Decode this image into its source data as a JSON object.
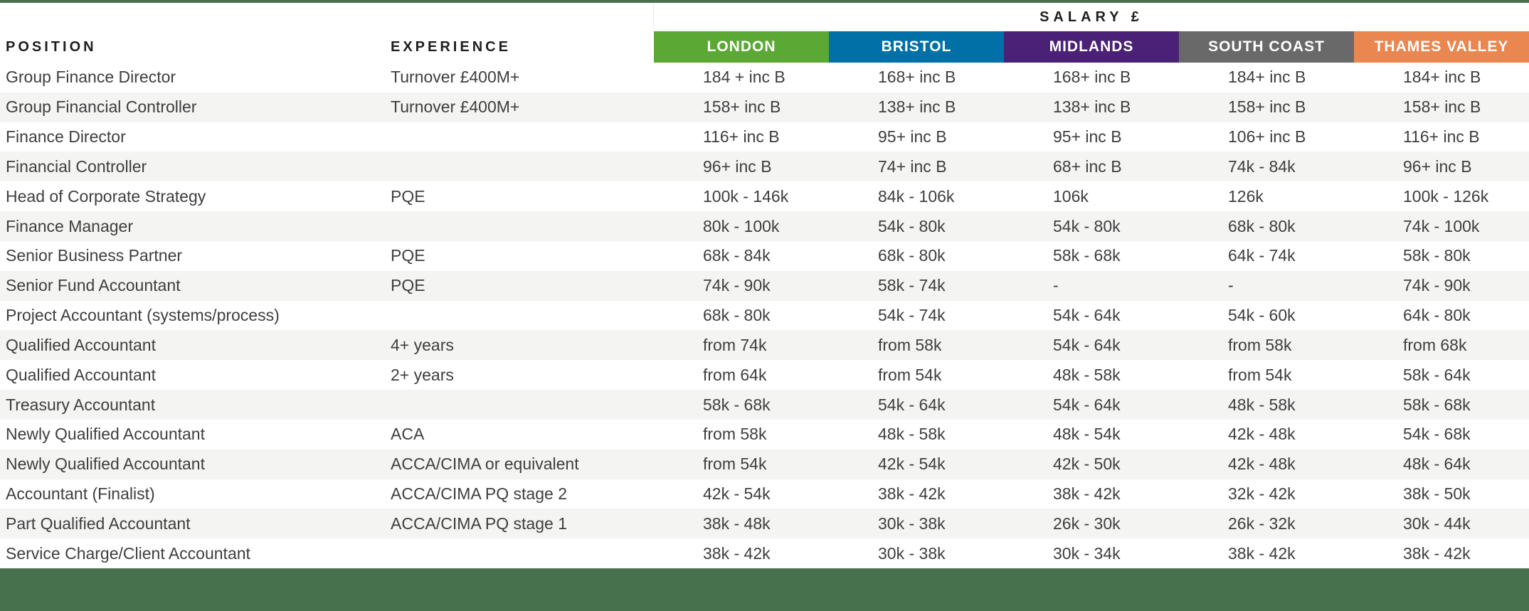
{
  "table": {
    "header": {
      "position_label": "POSITION",
      "experience_label": "EXPERIENCE",
      "salary_group_label": "SALARY £",
      "regions": [
        {
          "label": "LONDON",
          "color": "#5BA834"
        },
        {
          "label": "BRISTOL",
          "color": "#0170A6"
        },
        {
          "label": "MIDLANDS",
          "color": "#4A2176"
        },
        {
          "label": "SOUTH COAST",
          "color": "#6A6969"
        },
        {
          "label": "THAMES VALLEY",
          "color": "#EA8650"
        }
      ]
    },
    "rows": [
      {
        "position": "Group Finance Director",
        "experience": "Turnover £400M+",
        "salaries": [
          "184 + inc B",
          "168+ inc B",
          "168+ inc B",
          "184+ inc B",
          "184+ inc B"
        ]
      },
      {
        "position": "Group Financial Controller",
        "experience": "Turnover £400M+",
        "salaries": [
          "158+ inc B",
          "138+ inc B",
          "138+ inc B",
          "158+ inc B",
          "158+ inc B"
        ]
      },
      {
        "position": "Finance Director",
        "experience": "",
        "salaries": [
          "116+ inc B",
          "95+ inc B",
          "95+ inc B",
          "106+ inc B",
          "116+ inc B"
        ]
      },
      {
        "position": "Financial Controller",
        "experience": "",
        "salaries": [
          "96+ inc B",
          "74+ inc B",
          "68+ inc B",
          "74k - 84k",
          "96+ inc B"
        ]
      },
      {
        "position": "Head of Corporate Strategy",
        "experience": "PQE",
        "salaries": [
          "100k - 146k",
          "84k - 106k",
          "106k",
          "126k",
          "100k - 126k"
        ]
      },
      {
        "position": "Finance Manager",
        "experience": "",
        "salaries": [
          "80k - 100k",
          "54k - 80k",
          "54k - 80k",
          "68k - 80k",
          "74k - 100k"
        ]
      },
      {
        "position": "Senior Business Partner",
        "experience": "PQE",
        "salaries": [
          "68k - 84k",
          "68k - 80k",
          "58k - 68k",
          "64k - 74k",
          "58k - 80k"
        ]
      },
      {
        "position": "Senior Fund Accountant",
        "experience": "PQE",
        "salaries": [
          "74k - 90k",
          "58k - 74k",
          "-",
          "-",
          "74k - 90k"
        ]
      },
      {
        "position": "Project Accountant (systems/process)",
        "experience": "",
        "salaries": [
          "68k - 80k",
          "54k - 74k",
          "54k - 64k",
          "54k - 60k",
          "64k - 80k"
        ]
      },
      {
        "position": "Qualified Accountant",
        "experience": "4+ years",
        "salaries": [
          "from 74k",
          "from 58k",
          "54k - 64k",
          "from 58k",
          "from 68k"
        ]
      },
      {
        "position": "Qualified Accountant",
        "experience": "2+ years",
        "salaries": [
          "from 64k",
          "from 54k",
          "48k - 58k",
          "from 54k",
          "58k - 64k"
        ]
      },
      {
        "position": "Treasury Accountant",
        "experience": "",
        "salaries": [
          "58k - 68k",
          "54k - 64k",
          "54k - 64k",
          "48k - 58k",
          "58k - 68k"
        ]
      },
      {
        "position": "Newly Qualified Accountant",
        "experience": "ACA",
        "salaries": [
          "from 58k",
          "48k - 58k",
          "48k - 54k",
          "42k - 48k",
          "54k - 68k"
        ]
      },
      {
        "position": "Newly Qualified Accountant",
        "experience": "ACCA/CIMA or equivalent",
        "salaries": [
          "from 54k",
          "42k - 54k",
          "42k - 50k",
          "42k - 48k",
          "48k - 64k"
        ]
      },
      {
        "position": "Accountant (Finalist)",
        "experience": "ACCA/CIMA PQ stage 2",
        "salaries": [
          "42k - 54k",
          "38k - 42k",
          "38k - 42k",
          "32k - 42k",
          "38k - 50k"
        ]
      },
      {
        "position": "Part Qualified Accountant",
        "experience": "ACCA/CIMA PQ stage 1",
        "salaries": [
          "38k - 48k",
          "30k - 38k",
          "26k - 30k",
          "26k - 32k",
          "30k - 44k"
        ]
      },
      {
        "position": "Service Charge/Client Accountant",
        "experience": "",
        "salaries": [
          "38k - 42k",
          "30k - 38k",
          "30k - 34k",
          "38k - 42k",
          "38k - 42k"
        ]
      }
    ]
  },
  "colors": {
    "top_rule": "#47704D",
    "footer_band": "#47704D",
    "row_stripe": "#F4F4F3",
    "body_text": "#3E3E3E",
    "header_text": "#1E1E1E",
    "region_label_text": "#FFFFFF"
  }
}
